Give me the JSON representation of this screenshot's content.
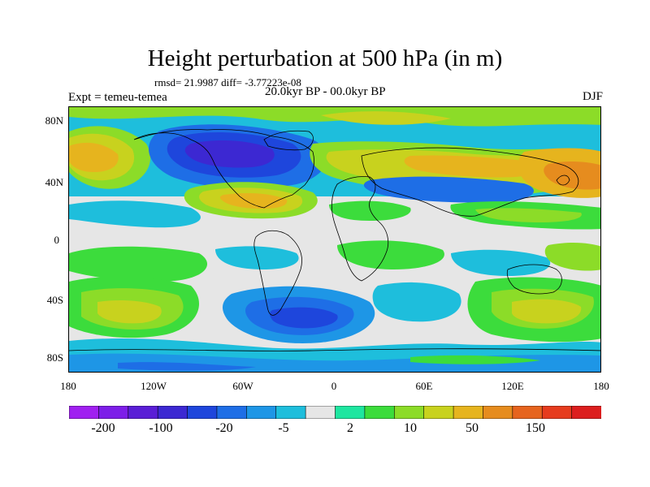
{
  "title": "Height perturbation at 500 hPa (in m)",
  "stats": "rmsd= 21.9987  diff= -3.77223e-08",
  "expt": "Expt = temeu-temea",
  "period": "20.0kyr BP - 00.0kyr BP",
  "season": "DJF",
  "lat_ticks": [
    "80N",
    "40N",
    "0",
    "40S",
    "80S"
  ],
  "lon_ticks": [
    "180",
    "120W",
    "60W",
    "0",
    "60E",
    "120E",
    "180"
  ],
  "colorbar": {
    "colors": [
      "#a020f0",
      "#7d1ee8",
      "#5a1ed6",
      "#3c28d2",
      "#1e46dc",
      "#1e6ee6",
      "#1e96e6",
      "#1ebedc",
      "#e6e6e6",
      "#1ee6a0",
      "#3cdc3c",
      "#8cdc28",
      "#c8d21e",
      "#e6b41e",
      "#e68c1e",
      "#e6641e",
      "#e63c1e",
      "#dc1e1e"
    ],
    "labels": [
      "-200",
      "-100",
      "-20",
      "-5",
      "2",
      "10",
      "50",
      "150"
    ]
  }
}
